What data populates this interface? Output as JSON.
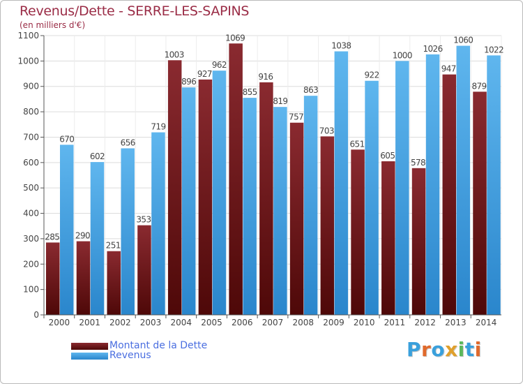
{
  "title": "Revenus/Dette - SERRE-LES-SAPINS",
  "subtitle": "(en milliers d'€)",
  "logo": "Proxiti",
  "colors": {
    "title": "#9a2c46",
    "dette": "#7a1a1f",
    "revenus": "#3a9be0",
    "legend_text": "#4a6ee0",
    "logo": [
      "#3aa0dc",
      "#e06a2c",
      "#3aa0dc",
      "#e0a02c",
      "#5cb85c",
      "#3aa0dc",
      "#e06a2c"
    ]
  },
  "legend": {
    "items": [
      {
        "label": "Montant de la Dette",
        "color": "#7a1a1f"
      },
      {
        "label": "Revenus",
        "color": "#3a9be0"
      }
    ]
  },
  "chart_data": {
    "type": "bar",
    "title": "Revenus/Dette - SERRE-LES-SAPINS",
    "ylabel": "",
    "xlabel": "",
    "ylim": [
      0,
      1100
    ],
    "ytick_step": 100,
    "grid": true,
    "legend_position": "bottom-left",
    "categories": [
      "2000",
      "2001",
      "2002",
      "2003",
      "2004",
      "2005",
      "2006",
      "2007",
      "2008",
      "2009",
      "2010",
      "2011",
      "2012",
      "2013",
      "2014"
    ],
    "series": [
      {
        "name": "Montant de la Dette",
        "values": [
          285,
          290,
          251,
          353,
          1003,
          927,
          1069,
          916,
          757,
          703,
          651,
          605,
          578,
          947,
          879
        ]
      },
      {
        "name": "Revenus",
        "values": [
          670,
          602,
          656,
          719,
          896,
          962,
          855,
          819,
          863,
          1038,
          922,
          1000,
          1026,
          1060,
          1022
        ]
      }
    ]
  }
}
